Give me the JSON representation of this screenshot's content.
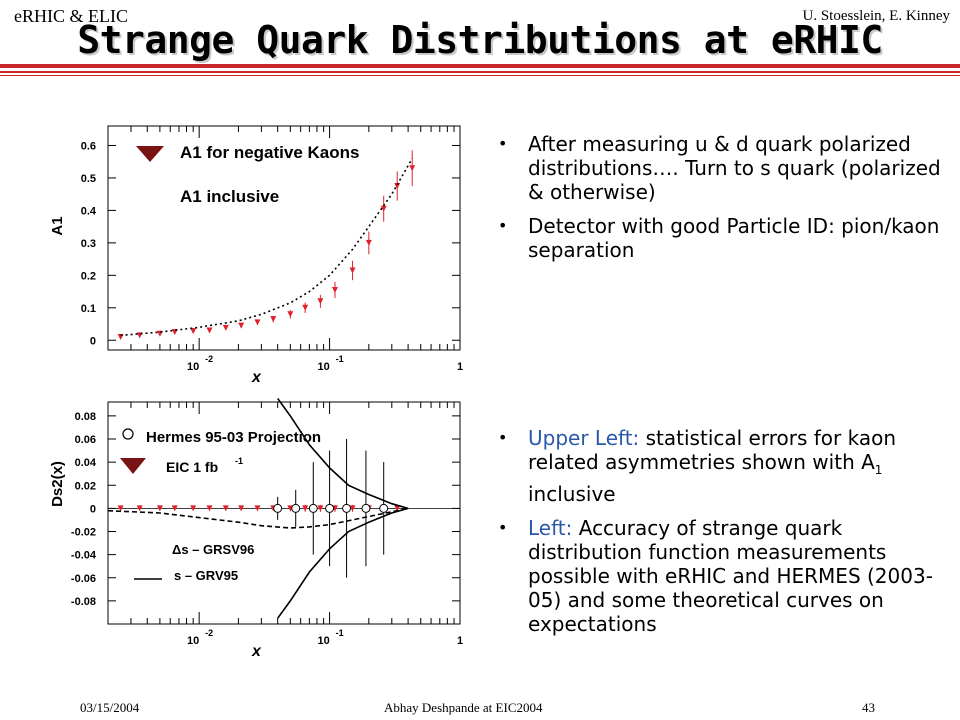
{
  "header": {
    "left": "eRHIC & ELIC",
    "right": "U. Stoesslein, E. Kinney"
  },
  "title": "Strange Quark Distributions at eRHIC",
  "bullets_top": [
    {
      "text": "After measuring u & d quark polarized distributions…. Turn to s quark (polarized & otherwise)"
    },
    {
      "text": "Detector with good Particle ID: pion/kaon separation"
    }
  ],
  "bullets_bottom": [
    {
      "lead": "Upper Left:",
      "text_pre": " statistical errors for kaon related asymmetries shown with A",
      "sub": "1",
      "text_post": " inclusive"
    },
    {
      "lead": "Left:",
      "text_pre": " Accuracy of strange quark distribution function measurements possible with eRHIC and HERMES (2003-05) and some theoretical curves on expectations",
      "sub": "",
      "text_post": ""
    }
  ],
  "footer": {
    "date": "03/15/2004",
    "author": "Abhay Deshpande at EIC2004",
    "page": "43"
  },
  "colors": {
    "accent_rule": "#c8262b",
    "marker_red": "#e0202a",
    "triangle": "#7a1414",
    "bullet_blue": "#2a58a8"
  },
  "chart_data": [
    {
      "type": "scatter",
      "xscale": "log",
      "xlim": [
        0.002,
        1
      ],
      "ylim": [
        -0.03,
        0.66
      ],
      "ylabel": "A1",
      "xlabel": "x",
      "x_ticklabels": [
        {
          "x": 0.01,
          "base": "10",
          "exp": "-2"
        },
        {
          "x": 0.1,
          "base": "10",
          "exp": "-1"
        },
        {
          "x": 1,
          "base": "1",
          "exp": ""
        }
      ],
      "y_ticks": [
        0,
        0.1,
        0.2,
        0.3,
        0.4,
        0.5,
        0.6
      ],
      "y_ticklabels": [
        "0",
        "0.1",
        "0.2",
        "0.3",
        "0.4",
        "0.5",
        "0.6"
      ],
      "legend": [
        {
          "label": "A1 for negative Kaons",
          "marker": "triangle"
        },
        {
          "label": "A1 inclusive",
          "marker": "none"
        }
      ],
      "series": [
        {
          "marker": "triangle",
          "x": [
            0.0025,
            0.0035,
            0.005,
            0.0065,
            0.009,
            0.012,
            0.016,
            0.021,
            0.028,
            0.037,
            0.05,
            0.065,
            0.085,
            0.11,
            0.15,
            0.2,
            0.26,
            0.33,
            0.43
          ],
          "y": [
            0.01,
            0.015,
            0.02,
            0.025,
            0.028,
            0.03,
            0.038,
            0.045,
            0.055,
            0.065,
            0.08,
            0.1,
            0.12,
            0.155,
            0.215,
            0.3,
            0.405,
            0.475,
            0.53
          ],
          "err": [
            0.003,
            0.003,
            0.004,
            0.004,
            0.004,
            0.005,
            0.006,
            0.007,
            0.008,
            0.01,
            0.013,
            0.016,
            0.02,
            0.025,
            0.03,
            0.035,
            0.04,
            0.045,
            0.055
          ]
        },
        {
          "style": "dotted",
          "x": [
            0.0025,
            0.005,
            0.01,
            0.02,
            0.03,
            0.05,
            0.07,
            0.1,
            0.15,
            0.2,
            0.3,
            0.43
          ],
          "y": [
            0.015,
            0.025,
            0.04,
            0.06,
            0.08,
            0.115,
            0.15,
            0.2,
            0.28,
            0.35,
            0.45,
            0.56
          ]
        }
      ]
    },
    {
      "type": "scatter",
      "xscale": "log",
      "xlim": [
        0.002,
        1
      ],
      "ylim": [
        -0.1,
        0.092
      ],
      "ylabel": "Ds2(x)",
      "xlabel": "x",
      "x_ticklabels": [
        {
          "x": 0.01,
          "base": "10",
          "exp": "-2"
        },
        {
          "x": 0.1,
          "base": "10",
          "exp": "-1"
        },
        {
          "x": 1,
          "base": "1",
          "exp": ""
        }
      ],
      "y_ticks": [
        -0.08,
        -0.06,
        -0.04,
        -0.02,
        0,
        0.02,
        0.04,
        0.06,
        0.08
      ],
      "y_ticklabels": [
        "-0.08",
        "-0.06",
        "-0.04",
        "-0.02",
        "0",
        "0.02",
        "0.04",
        "0.06",
        "0.08"
      ],
      "legend": [
        {
          "label": "Hermes 95-03 Projection",
          "marker": "circle"
        },
        {
          "label": "EIC 1 fb",
          "sup": "-1",
          "marker": "triangle"
        },
        {
          "label": "Δs – GRSV96",
          "marker": "dashed"
        },
        {
          "label": "s – GRV95",
          "marker": "solid"
        }
      ],
      "series": [
        {
          "marker": "triangle",
          "x": [
            0.0025,
            0.0035,
            0.005,
            0.0065,
            0.009,
            0.012,
            0.016,
            0.021,
            0.028,
            0.037,
            0.05,
            0.065,
            0.085,
            0.11,
            0.15,
            0.2,
            0.26,
            0.33
          ],
          "y": [
            0,
            0,
            0,
            0,
            0,
            0,
            0,
            0,
            0,
            0,
            0,
            0,
            0,
            0,
            0,
            0,
            0,
            0
          ],
          "err": [
            0.0007,
            0.0007,
            0.0008,
            0.0008,
            0.0009,
            0.001,
            0.0012,
            0.0014,
            0.0016,
            0.002,
            0.0025,
            0.003,
            0.003,
            0.003,
            0.003,
            0.003,
            0.003,
            0.003
          ]
        },
        {
          "marker": "circle",
          "x": [
            0.04,
            0.055,
            0.075,
            0.1,
            0.135,
            0.19,
            0.26
          ],
          "y": [
            0,
            0,
            0,
            0,
            0,
            0,
            0
          ],
          "err": [
            0.01,
            0.016,
            0.04,
            0.05,
            0.06,
            0.05,
            0.04
          ]
        },
        {
          "style": "dashed",
          "x": [
            0.002,
            0.005,
            0.01,
            0.02,
            0.03,
            0.05,
            0.07,
            0.1,
            0.15,
            0.2,
            0.3,
            0.4
          ],
          "y": [
            -0.002,
            -0.004,
            -0.008,
            -0.012,
            -0.015,
            -0.017,
            -0.016,
            -0.014,
            -0.01,
            -0.007,
            -0.003,
            0
          ]
        },
        {
          "style": "solid",
          "x": [
            0.04,
            0.05,
            0.07,
            0.1,
            0.14,
            0.2,
            0.3,
            0.4
          ],
          "y": [
            0.095,
            0.08,
            0.055,
            0.035,
            0.02,
            0.012,
            0.004,
            0
          ],
          "mirror": true
        }
      ]
    }
  ]
}
